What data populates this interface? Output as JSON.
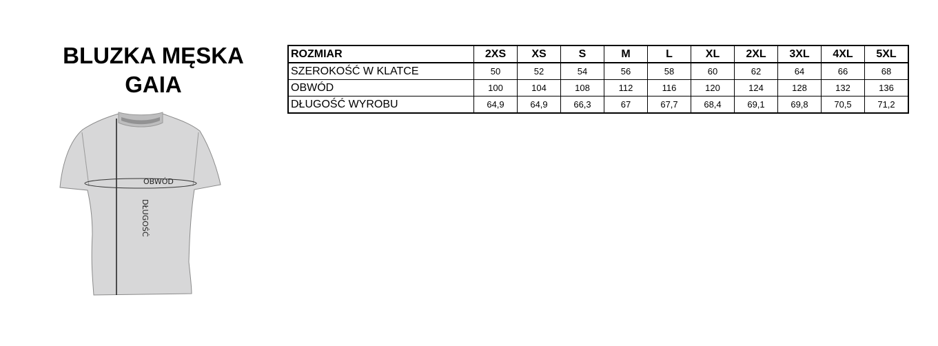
{
  "title": {
    "line1": "BLUZKA MĘSKA",
    "line2": "GAIA"
  },
  "illustration": {
    "circumference_label": "OBWÓD",
    "length_label": "DŁUGOŚĆ"
  },
  "size_table": {
    "header": {
      "label": "ROZMIAR",
      "sizes": [
        "2XS",
        "XS",
        "S",
        "M",
        "L",
        "XL",
        "2XL",
        "3XL",
        "4XL",
        "5XL"
      ]
    },
    "rows": [
      {
        "label": "SZEROKOŚĆ W KLATCE",
        "values": [
          "50",
          "52",
          "54",
          "56",
          "58",
          "60",
          "62",
          "64",
          "66",
          "68"
        ]
      },
      {
        "label": "OBWÓD",
        "values": [
          "100",
          "104",
          "108",
          "112",
          "116",
          "120",
          "124",
          "128",
          "132",
          "136"
        ]
      },
      {
        "label": "DŁUGOŚĆ WYROBU",
        "values": [
          "64,9",
          "64,9",
          "66,3",
          "67",
          "67,7",
          "68,4",
          "69,1",
          "69,8",
          "70,5",
          "71,2"
        ]
      }
    ]
  }
}
